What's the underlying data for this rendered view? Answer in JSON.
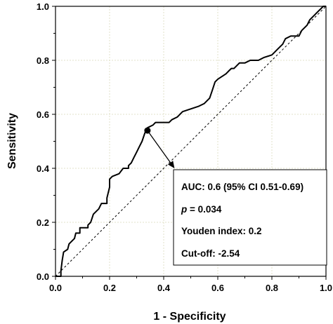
{
  "chart_data": {
    "type": "line",
    "xlabel": "1 - Specificity",
    "ylabel": "Sensitivity",
    "xlim": [
      0,
      1
    ],
    "ylim": [
      0,
      1
    ],
    "x_ticks": [
      "0.0",
      "0.2",
      "0.4",
      "0.6",
      "0.8",
      "1.0"
    ],
    "y_ticks": [
      "0.0",
      "0.2",
      "0.4",
      "0.6",
      "0.8",
      "1.0"
    ],
    "grid": true,
    "series": [
      {
        "style": "solid",
        "points": [
          [
            0.0,
            0.0
          ],
          [
            0.02,
            0.0
          ],
          [
            0.02,
            0.02
          ],
          [
            0.025,
            0.06
          ],
          [
            0.03,
            0.09
          ],
          [
            0.045,
            0.1
          ],
          [
            0.05,
            0.12
          ],
          [
            0.07,
            0.14
          ],
          [
            0.075,
            0.16
          ],
          [
            0.09,
            0.16
          ],
          [
            0.09,
            0.18
          ],
          [
            0.12,
            0.18
          ],
          [
            0.12,
            0.19
          ],
          [
            0.13,
            0.2
          ],
          [
            0.14,
            0.23
          ],
          [
            0.16,
            0.25
          ],
          [
            0.17,
            0.27
          ],
          [
            0.19,
            0.27
          ],
          [
            0.19,
            0.29
          ],
          [
            0.2,
            0.33
          ],
          [
            0.2,
            0.36
          ],
          [
            0.21,
            0.37
          ],
          [
            0.235,
            0.38
          ],
          [
            0.25,
            0.4
          ],
          [
            0.27,
            0.4
          ],
          [
            0.27,
            0.41
          ],
          [
            0.28,
            0.42
          ],
          [
            0.29,
            0.44
          ],
          [
            0.3,
            0.46
          ],
          [
            0.31,
            0.48
          ],
          [
            0.32,
            0.5
          ],
          [
            0.33,
            0.53
          ],
          [
            0.34,
            0.55
          ],
          [
            0.36,
            0.56
          ],
          [
            0.37,
            0.57
          ],
          [
            0.39,
            0.57
          ],
          [
            0.42,
            0.57
          ],
          [
            0.43,
            0.58
          ],
          [
            0.45,
            0.59
          ],
          [
            0.47,
            0.61
          ],
          [
            0.5,
            0.62
          ],
          [
            0.53,
            0.63
          ],
          [
            0.55,
            0.64
          ],
          [
            0.57,
            0.66
          ],
          [
            0.58,
            0.69
          ],
          [
            0.59,
            0.72
          ],
          [
            0.6,
            0.73
          ],
          [
            0.63,
            0.75
          ],
          [
            0.64,
            0.76
          ],
          [
            0.65,
            0.77
          ],
          [
            0.66,
            0.77
          ],
          [
            0.68,
            0.79
          ],
          [
            0.7,
            0.79
          ],
          [
            0.72,
            0.8
          ],
          [
            0.75,
            0.8
          ],
          [
            0.77,
            0.81
          ],
          [
            0.8,
            0.82
          ],
          [
            0.81,
            0.83
          ],
          [
            0.82,
            0.84
          ],
          [
            0.84,
            0.86
          ],
          [
            0.85,
            0.88
          ],
          [
            0.87,
            0.89
          ],
          [
            0.9,
            0.89
          ],
          [
            0.91,
            0.91
          ],
          [
            0.93,
            0.93
          ],
          [
            0.94,
            0.95
          ],
          [
            0.96,
            0.97
          ],
          [
            0.97,
            0.98
          ],
          [
            0.98,
            0.99
          ],
          [
            0.99,
            1.0
          ],
          [
            1.0,
            1.0
          ]
        ]
      },
      {
        "style": "dashed",
        "points": [
          [
            0,
            0
          ],
          [
            1,
            1
          ]
        ]
      }
    ],
    "highlight_point": [
      0.34,
      0.54
    ],
    "annotation_arrow_to": [
      0.44,
      0.4
    ],
    "annotation": {
      "line1": "AUC: 0.6 (95% CI 0.51-0.69)",
      "line2_italic": "p",
      "line2_rest": " = 0.034",
      "line3": "Youden index: 0.2",
      "line4": "Cut-off: -2.54"
    }
  }
}
